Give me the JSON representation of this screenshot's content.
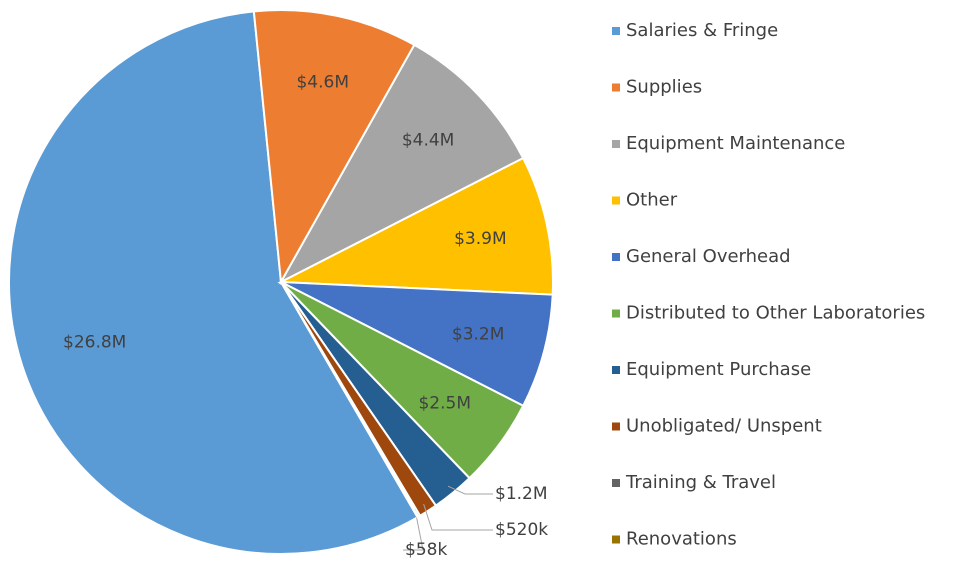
{
  "chart_data": {
    "type": "pie",
    "categories": [
      "Salaries & Fringe",
      "Supplies",
      "Equipment Maintenance",
      "Other",
      "General Overhead",
      "Distributed to Other Laboratories",
      "Equipment Purchase",
      "Unobligated/ Unspent",
      "Training & Travel",
      "Renovations"
    ],
    "values": [
      26800000,
      4600000,
      4400000,
      3900000,
      3200000,
      2500000,
      1200000,
      520000,
      58000,
      20000
    ],
    "value_labels": [
      "$26.8M",
      "$4.6M",
      "$4.4M",
      "$3.9M",
      "$3.2M",
      "$2.5M",
      "$1.2M",
      "$520k",
      "$58k",
      null
    ],
    "colors": [
      "#5b9bd5",
      "#ed7d31",
      "#a5a5a5",
      "#ffc000",
      "#4472c4",
      "#70ad47",
      "#255e91",
      "#9e480e",
      "#636363",
      "#997300"
    ],
    "legend": "right"
  }
}
